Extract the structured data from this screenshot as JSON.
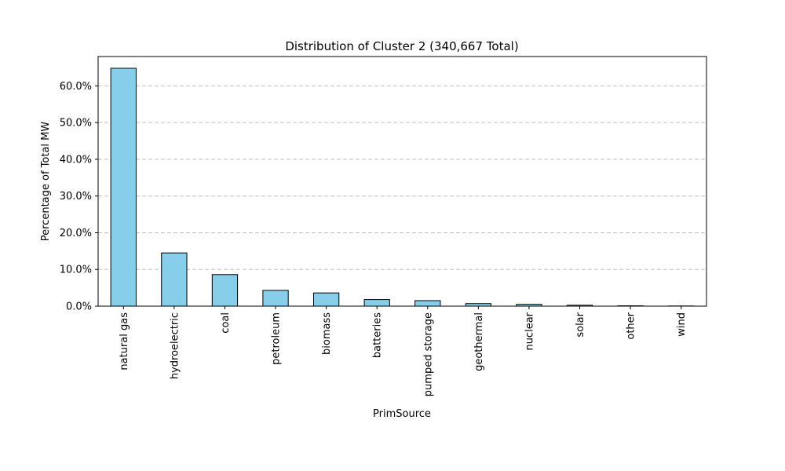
{
  "chart_data": {
    "type": "bar",
    "title": "Distribution of Cluster 2 (340,667 Total)",
    "xlabel": "PrimSource",
    "ylabel": "Percentage of Total MW",
    "categories": [
      "natural gas",
      "hydroelectric",
      "coal",
      "petroleum",
      "biomass",
      "batteries",
      "pumped storage",
      "geothermal",
      "nuclear",
      "solar",
      "other",
      "wind"
    ],
    "values": [
      64.8,
      14.5,
      8.6,
      4.3,
      3.6,
      1.8,
      1.5,
      0.7,
      0.5,
      0.25,
      0.1,
      0.05
    ],
    "ylim": [
      0,
      68
    ],
    "yticks": [
      0,
      10,
      20,
      30,
      40,
      50,
      60
    ],
    "ytick_labels": [
      "0.0%",
      "10.0%",
      "20.0%",
      "30.0%",
      "40.0%",
      "50.0%",
      "60.0%"
    ],
    "grid": "y-dashed",
    "colors": {
      "bar_fill": "#87ceeb",
      "bar_edge": "#000000",
      "grid": "#c0c0c0"
    }
  }
}
